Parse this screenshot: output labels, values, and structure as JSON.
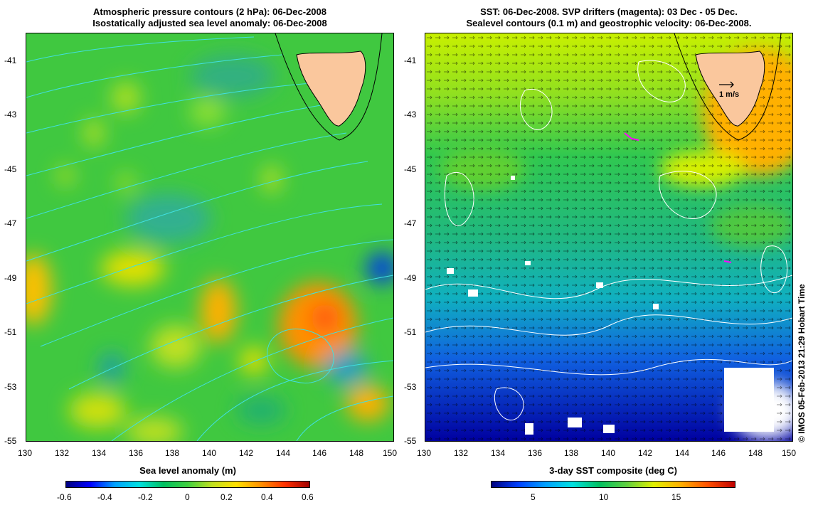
{
  "left_panel": {
    "title_line1": "Atmospheric pressure contours (2 hPa): 06-Dec-2008",
    "title_line2": "Isostatically adjusted sea level anomaly: 06-Dec-2008",
    "colorbar_label": "Sea level anomaly (m)",
    "colorbar_ticks": [
      "-0.6",
      "-0.4",
      "-0.2",
      "0",
      "0.2",
      "0.4",
      "0.6"
    ],
    "colorbar_colors": [
      "#00007f",
      "#0000ff",
      "#00a0ff",
      "#00e0e0",
      "#00c060",
      "#40d040",
      "#c0e020",
      "#ffe000",
      "#ff9000",
      "#ff3000",
      "#a00000"
    ]
  },
  "right_panel": {
    "title_line1": "SST: 06-Dec-2008. SVP drifters (magenta): 03 Dec - 05 Dec.",
    "title_line2": "Sealevel contours (0.1 m) and geostrophic velocity: 06-Dec-2008.",
    "colorbar_label": "3-day SST composite (deg C)",
    "colorbar_ticks": [
      "5",
      "10",
      "15"
    ],
    "colorbar_colors": [
      "#00007f",
      "#0040ff",
      "#00a0ff",
      "#00e0e0",
      "#00c060",
      "#60d040",
      "#e0f000",
      "#ffb000",
      "#ff5000",
      "#c00000"
    ],
    "velocity_reference": "1 m/s"
  },
  "axes": {
    "lat_ticks": [
      "-41",
      "-43",
      "-45",
      "-47",
      "-49",
      "-51",
      "-53",
      "-55"
    ],
    "lon_ticks": [
      "130",
      "132",
      "134",
      "136",
      "138",
      "140",
      "142",
      "144",
      "146",
      "148",
      "150"
    ]
  },
  "credit": "© IMOS 05-Feb-2013 21:29 Hobart Time",
  "colors": {
    "land": "#fac79d",
    "contour_pressure": "#40e0e0",
    "contour_sealevel": "#ffffff"
  }
}
